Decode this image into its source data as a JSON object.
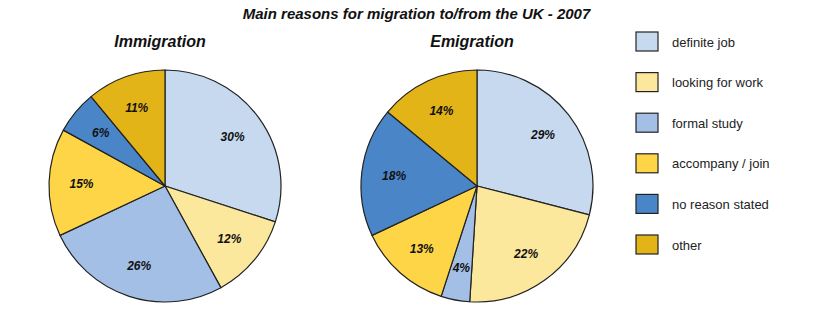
{
  "chart_data": {
    "type": "pie",
    "title": "Main reasons for migration to/from the UK - 2007",
    "categories": [
      "definite job",
      "looking for work",
      "formal study",
      "accompany / join",
      "no reason stated",
      "other"
    ],
    "colors": [
      "#c6d9ef",
      "#fce89c",
      "#a3bfe6",
      "#fdd547",
      "#4a85c8",
      "#e3b418"
    ],
    "series": [
      {
        "name": "Immigration",
        "values": [
          30,
          12,
          26,
          15,
          6,
          11
        ],
        "value_labels": [
          "30%",
          "12%",
          "26%",
          "15%",
          "6%",
          "11%"
        ]
      },
      {
        "name": "Emigration",
        "values": [
          29,
          22,
          4,
          13,
          18,
          14
        ],
        "value_labels": [
          "29%",
          "22%",
          "4%",
          "13%",
          "18%",
          "14%"
        ]
      }
    ],
    "data_labels": true,
    "legend": "right"
  }
}
